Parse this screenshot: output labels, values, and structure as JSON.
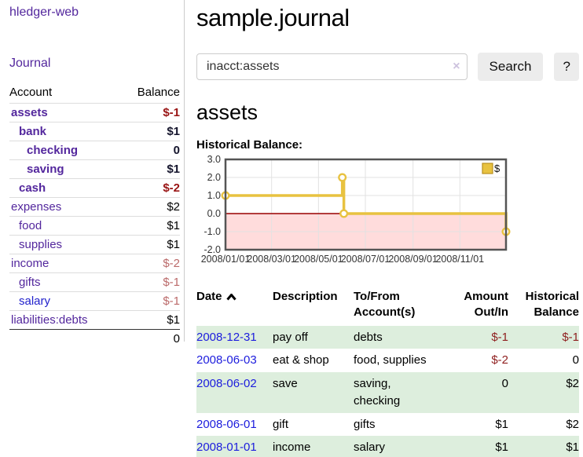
{
  "app": {
    "title": "hledger-web",
    "nav": {
      "journal": "Journal"
    }
  },
  "sidebar": {
    "accounts_header": {
      "account": "Account",
      "balance": "Balance"
    },
    "accounts": [
      {
        "name": "assets",
        "level": 1,
        "balance": "$-1",
        "emph": true
      },
      {
        "name": "bank",
        "level": 2,
        "balance": "$1",
        "emph": true
      },
      {
        "name": "checking",
        "level": 3,
        "balance": "0",
        "emph": true
      },
      {
        "name": "saving",
        "level": 3,
        "balance": "$1",
        "emph": true
      },
      {
        "name": "cash",
        "level": 2,
        "balance": "$-2",
        "emph": true
      },
      {
        "name": "expenses",
        "level": 1,
        "balance": "$2",
        "emph": false
      },
      {
        "name": "food",
        "level": 2,
        "balance": "$1",
        "emph": false
      },
      {
        "name": "supplies",
        "level": 2,
        "balance": "$1",
        "emph": false
      },
      {
        "name": "income",
        "level": 1,
        "balance": "$-2",
        "emph": false
      },
      {
        "name": "gifts",
        "level": 2,
        "balance": "$-1",
        "emph": false
      },
      {
        "name": "salary",
        "level": 2,
        "balance": "$-1",
        "emph": false,
        "link_blue": true
      },
      {
        "name": "liabilities:debts",
        "level": 1,
        "balance": "$1",
        "emph": false
      }
    ],
    "total": "0"
  },
  "header": {
    "title": "sample.journal"
  },
  "search": {
    "value": "inacct:assets",
    "clear_icon": "×",
    "button_label": "Search",
    "help_label": "?"
  },
  "account_page": {
    "heading": "assets",
    "chart_label": "Historical Balance:"
  },
  "chart_data": {
    "type": "line",
    "step": true,
    "xlim": [
      "2008-01-01",
      "2008-12-31"
    ],
    "ylim": [
      -2,
      3
    ],
    "y_ticks": [
      "3.0",
      "2.0",
      "1.0",
      "0.0",
      "-1.0",
      "-2.0"
    ],
    "x_ticks": [
      {
        "date": "2008-01-01",
        "label": "2008/01/01"
      },
      {
        "date": "2008-03-01",
        "label": "2008/03/01"
      },
      {
        "date": "2008-05-01",
        "label": "2008/05/01"
      },
      {
        "date": "2008-07-01",
        "label": "2008/07/01"
      },
      {
        "date": "2008-09-01",
        "label": "2008/09/01"
      },
      {
        "date": "2008-11-01",
        "label": "2008/11/01"
      }
    ],
    "series": [
      {
        "name": "$",
        "color": "#e8c240",
        "points": [
          [
            "2008-01-01",
            1
          ],
          [
            "2008-06-01",
            2
          ],
          [
            "2008-06-03",
            0
          ],
          [
            "2008-12-31",
            -1
          ]
        ]
      }
    ],
    "legend_position": "top-right",
    "colors": {
      "negative_fill": "#ffdcdc",
      "zero_line": "#990000",
      "grid": "#e2e2e2",
      "border": "#555555",
      "legend_swatch_border": "#b98f1e"
    }
  },
  "register": {
    "columns": [
      {
        "line1": "Date",
        "line2": ""
      },
      {
        "line1": "Description",
        "line2": ""
      },
      {
        "line1": "To/From",
        "line2": "Account(s)"
      },
      {
        "line1": "Amount",
        "line2": "Out/In"
      },
      {
        "line1": "Historical",
        "line2": "Balance"
      }
    ],
    "rows": [
      {
        "date": "2008-12-31",
        "description": "pay off",
        "accounts": "debts",
        "amount": "$-1",
        "balance": "$-1"
      },
      {
        "date": "2008-06-03",
        "description": "eat & shop",
        "accounts": "food, supplies",
        "amount": "$-2",
        "balance": "0"
      },
      {
        "date": "2008-06-02",
        "description": "save",
        "accounts": "saving,\nchecking",
        "amount": "0",
        "balance": "$2"
      },
      {
        "date": "2008-06-01",
        "description": "gift",
        "accounts": "gifts",
        "amount": "$1",
        "balance": "$2"
      },
      {
        "date": "2008-01-01",
        "description": "income",
        "accounts": "salary",
        "amount": "$1",
        "balance": "$1"
      }
    ]
  }
}
